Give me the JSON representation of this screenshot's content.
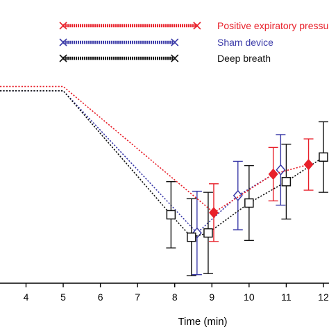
{
  "chart_data": {
    "type": "line",
    "title": "",
    "xlabel": "Time (min)",
    "ylabel": "",
    "xlim": [
      3.3,
      12.15
    ],
    "ylim": [
      0,
      10
    ],
    "x_ticks": [
      4,
      5,
      6,
      7,
      8,
      9,
      10,
      11,
      12
    ],
    "x_tick_labels": [
      "4",
      "5",
      "6",
      "7",
      "8",
      "9",
      "10",
      "11",
      "12"
    ],
    "legend_position": "top",
    "series": [
      {
        "name": "Positive expiratory pressure",
        "color": "#e8202a",
        "marker": "diamond-filled",
        "baseline": {
          "x": [
            3.3,
            5.0
          ],
          "y": 9.2
        },
        "bar": {
          "x_start": 5.0,
          "x_end": 8.6
        },
        "points": [
          {
            "x": 9.05,
            "y": 3.3,
            "err": 1.35
          },
          {
            "x": 10.65,
            "y": 5.1,
            "err": 1.25
          },
          {
            "x": 11.6,
            "y": 5.55,
            "err": 1.2
          }
        ]
      },
      {
        "name": "Sham device",
        "color": "#3a3aa8",
        "marker": "diamond-open",
        "baseline": {
          "x": [
            3.3,
            5.0
          ],
          "y": 9.0
        },
        "bar": {
          "x_start": 5.0,
          "x_end": 8.0
        },
        "points": [
          {
            "x": 8.6,
            "y": 2.35,
            "err": 1.95
          },
          {
            "x": 9.7,
            "y": 4.1,
            "err": 1.6
          },
          {
            "x": 10.85,
            "y": 5.3,
            "err": 1.65
          }
        ]
      },
      {
        "name": "Deep breath",
        "color": "#111111",
        "marker": "square-open",
        "baseline": {
          "x": [
            3.3,
            5.0
          ],
          "y": 9.0
        },
        "bar": {
          "x_start": 5.0,
          "x_end": 8.0
        },
        "points": [
          {
            "x": 7.9,
            "y": 3.2,
            "err": 1.55
          },
          {
            "x": 8.45,
            "y": 2.15,
            "err": 1.8
          },
          {
            "x": 8.9,
            "y": 2.35,
            "err": 1.9
          },
          {
            "x": 10.0,
            "y": 3.75,
            "err": 1.75
          },
          {
            "x": 11.0,
            "y": 4.75,
            "err": 1.75
          },
          {
            "x": 12.0,
            "y": 5.9,
            "err": 1.65
          }
        ]
      }
    ]
  }
}
